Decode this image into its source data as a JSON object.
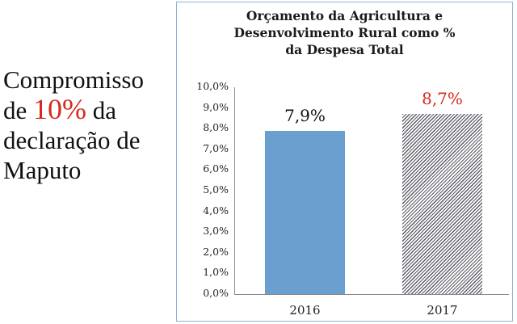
{
  "left_text": {
    "line1": "Compromisso",
    "line2_pre": "de ",
    "line2_highlight": "10%",
    "line2_post": " da",
    "line3": "declaração de",
    "line4": "Maputo",
    "highlight_color": "#d42a20"
  },
  "chart": {
    "title_line1": "Orçamento da Agricultura e",
    "title_line2": "Desenvolvimento Rural como %",
    "title_line3": "da Despesa Total",
    "y_ticks": [
      "10,0%",
      "9,0%",
      "8,0%",
      "7,0%",
      "6,0%",
      "5,0%",
      "4,0%",
      "3,0%",
      "2,0%",
      "1,0%",
      "0,0%"
    ],
    "bars": [
      {
        "category": "2016",
        "label": "7,9%",
        "label_color": "#111111"
      },
      {
        "category": "2017",
        "label": "8,7%",
        "label_color": "#d42a20"
      }
    ]
  },
  "chart_data": {
    "type": "bar",
    "title": "Orçamento da Agricultura e Desenvolvimento Rural como % da Despesa Total",
    "categories": [
      "2016",
      "2017"
    ],
    "values": [
      7.9,
      8.7
    ],
    "value_labels": [
      "7,9%",
      "8,7%"
    ],
    "xlabel": "",
    "ylabel": "",
    "ylim": [
      0,
      10
    ],
    "y_tick_labels": [
      "0,0%",
      "1,0%",
      "2,0%",
      "3,0%",
      "4,0%",
      "5,0%",
      "6,0%",
      "7,0%",
      "8,0%",
      "9,0%",
      "10,0%"
    ],
    "grid": false,
    "legend": "none",
    "bar_styles": [
      {
        "category": "2016",
        "fill": "#6a9fd0",
        "pattern": "solid"
      },
      {
        "category": "2017",
        "fill": "#5a5a66",
        "pattern": "diagonal-hatch"
      }
    ],
    "annotation": "Compromisso de 10% da declaração de Maputo"
  }
}
